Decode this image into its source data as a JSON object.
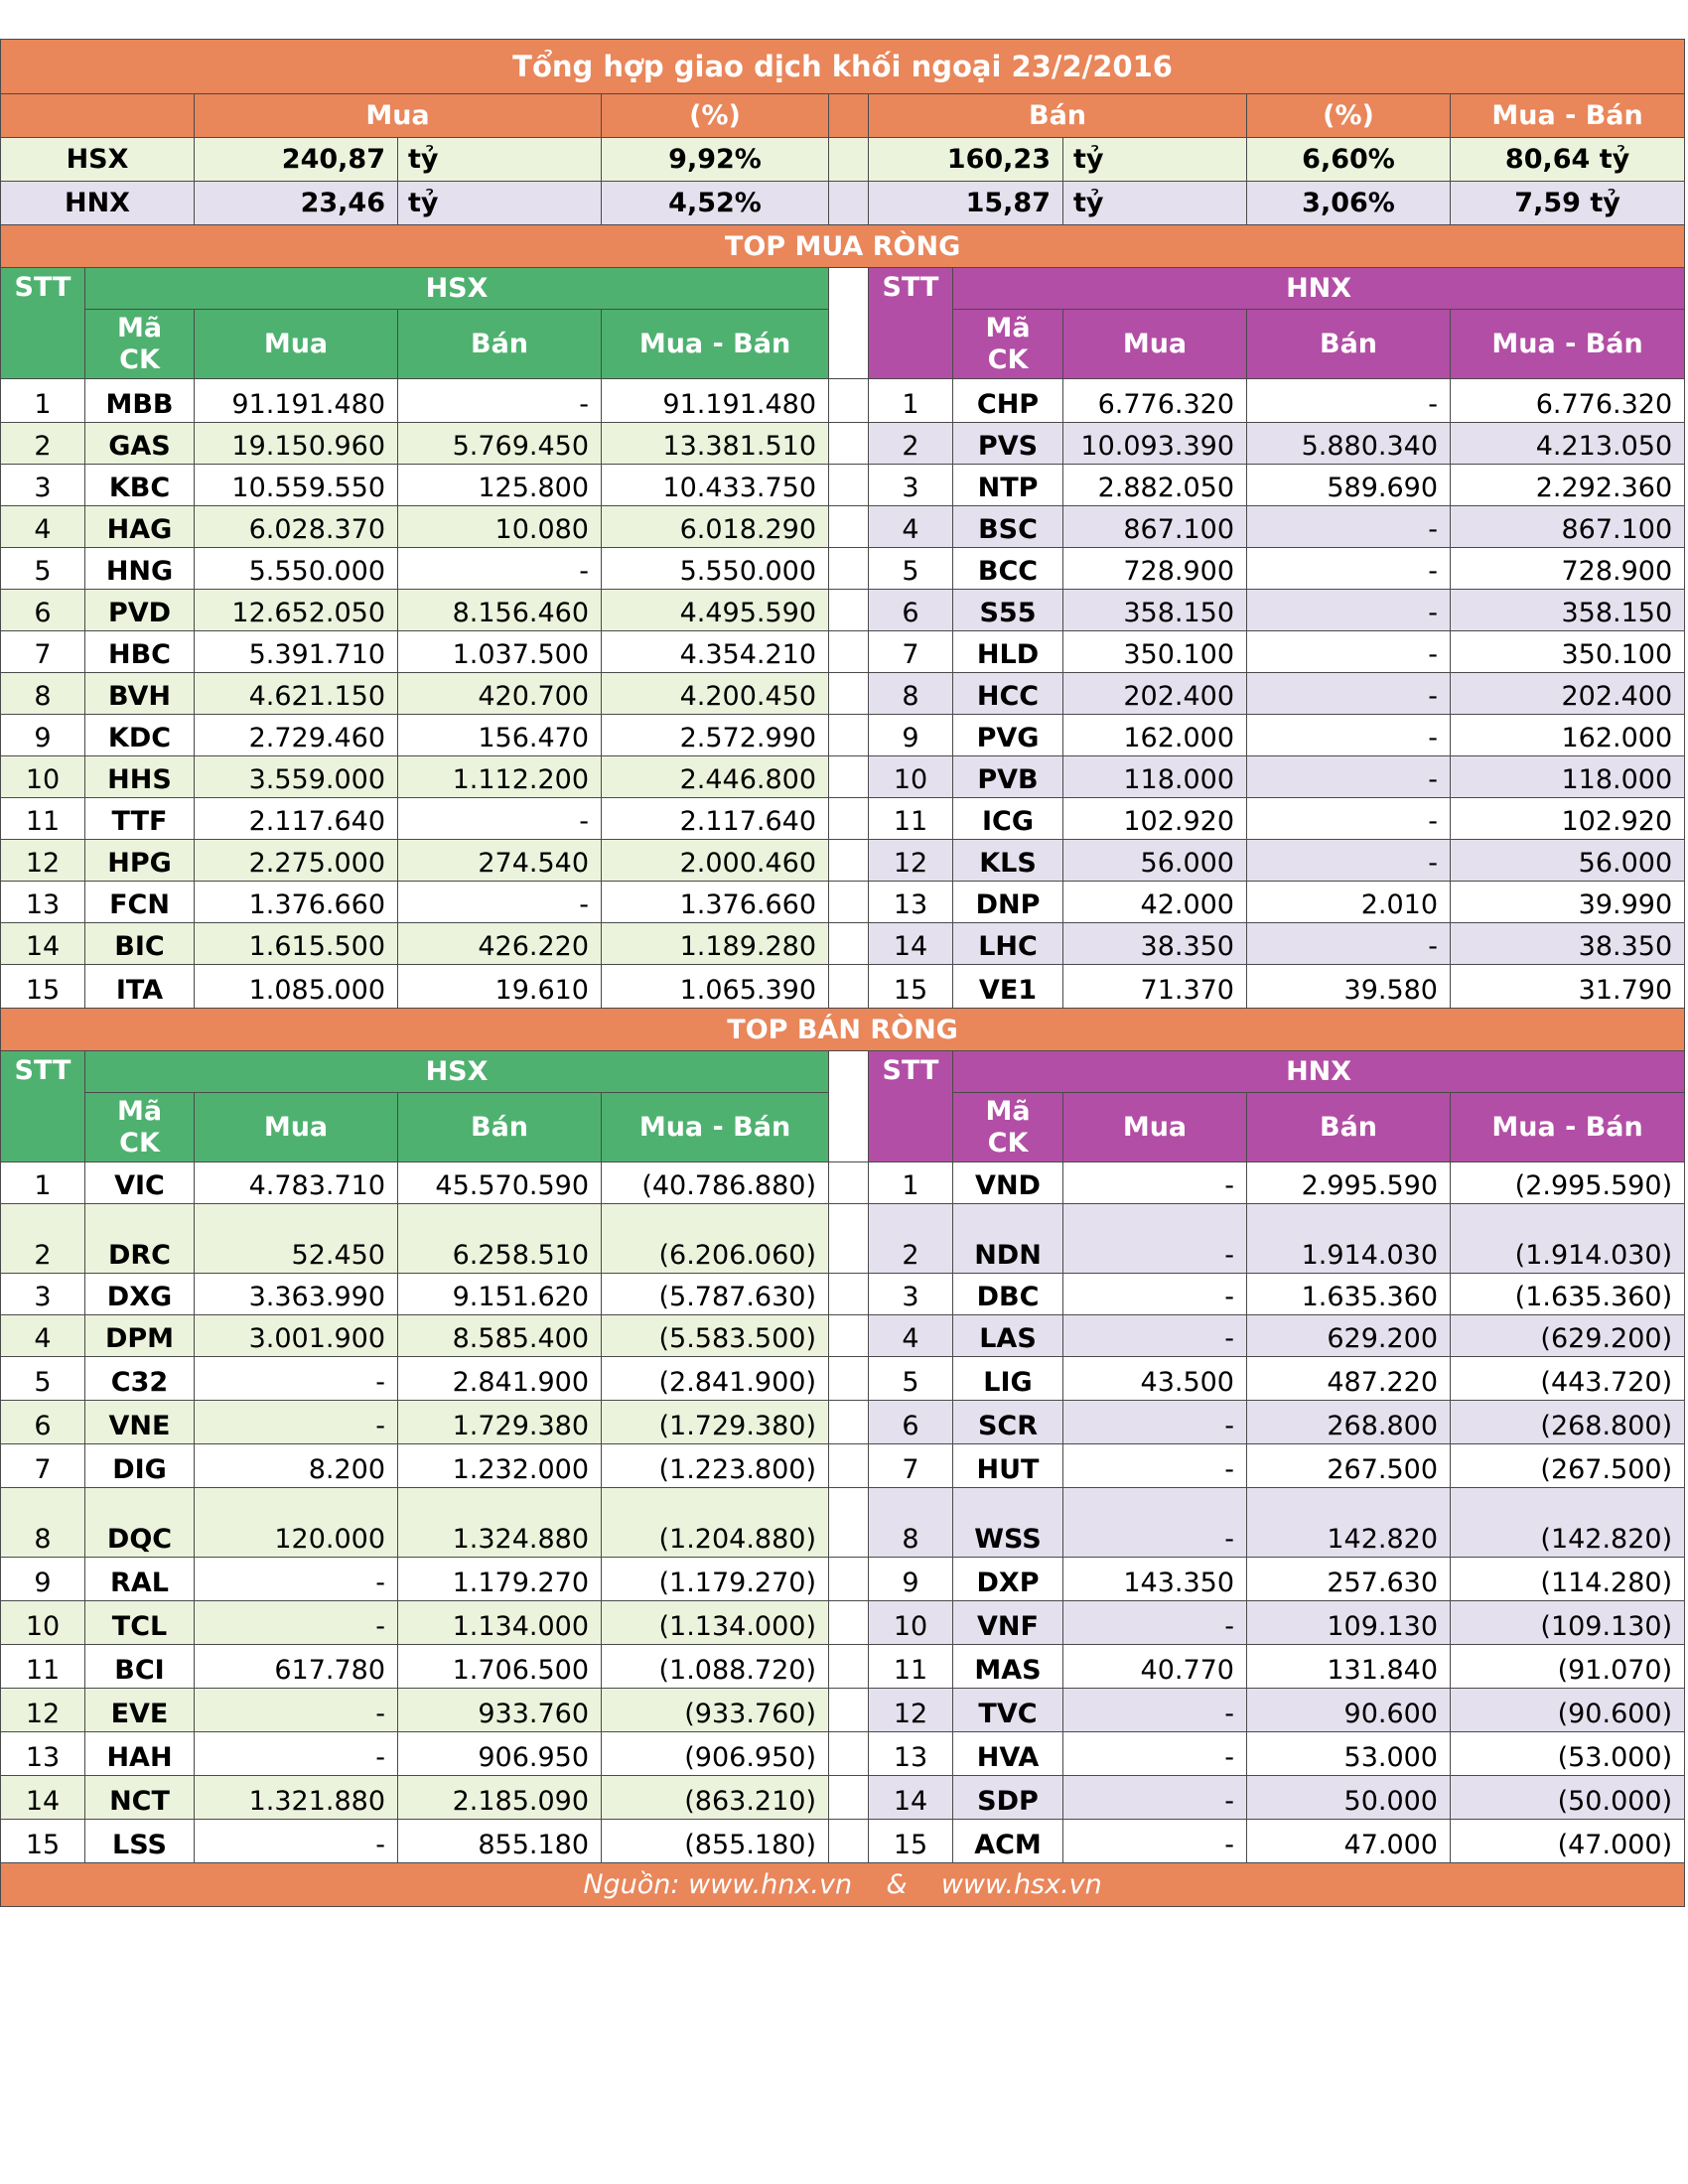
{
  "title": "Tổng hợp giao dịch khối ngoại 23/2/2016",
  "summary": {
    "headers": {
      "mua": "Mua",
      "pct1": "(%)",
      "ban": "Bán",
      "pct2": "(%)",
      "net": "Mua - Bán"
    },
    "rows": [
      {
        "exchange": "HSX",
        "mua": "240,87",
        "mua_unit": "tỷ",
        "mua_pct": "9,92%",
        "ban": "160,23",
        "ban_unit": "tỷ",
        "ban_pct": "6,60%",
        "net": "80,64 tỷ"
      },
      {
        "exchange": "HNX",
        "mua": "23,46",
        "mua_unit": "tỷ",
        "mua_pct": "4,52%",
        "ban": "15,87",
        "ban_unit": "tỷ",
        "ban_pct": "3,06%",
        "net": "7,59 tỷ"
      }
    ]
  },
  "headers": {
    "stt": "STT",
    "ma": "Mã",
    "ck": "CK",
    "mua": "Mua",
    "ban": "Bán",
    "net": "Mua - Bán",
    "hsx": "HSX",
    "hnx": "HNX"
  },
  "top_buy": {
    "title": "TOP MUA RÒNG",
    "hsx": [
      [
        "1",
        "MBB",
        "91.191.480",
        "-",
        "91.191.480"
      ],
      [
        "2",
        "GAS",
        "19.150.960",
        "5.769.450",
        "13.381.510"
      ],
      [
        "3",
        "KBC",
        "10.559.550",
        "125.800",
        "10.433.750"
      ],
      [
        "4",
        "HAG",
        "6.028.370",
        "10.080",
        "6.018.290"
      ],
      [
        "5",
        "HNG",
        "5.550.000",
        "-",
        "5.550.000"
      ],
      [
        "6",
        "PVD",
        "12.652.050",
        "8.156.460",
        "4.495.590"
      ],
      [
        "7",
        "HBC",
        "5.391.710",
        "1.037.500",
        "4.354.210"
      ],
      [
        "8",
        "BVH",
        "4.621.150",
        "420.700",
        "4.200.450"
      ],
      [
        "9",
        "KDC",
        "2.729.460",
        "156.470",
        "2.572.990"
      ],
      [
        "10",
        "HHS",
        "3.559.000",
        "1.112.200",
        "2.446.800"
      ],
      [
        "11",
        "TTF",
        "2.117.640",
        "-",
        "2.117.640"
      ],
      [
        "12",
        "HPG",
        "2.275.000",
        "274.540",
        "2.000.460"
      ],
      [
        "13",
        "FCN",
        "1.376.660",
        "-",
        "1.376.660"
      ],
      [
        "14",
        "BIC",
        "1.615.500",
        "426.220",
        "1.189.280"
      ],
      [
        "15",
        "ITA",
        "1.085.000",
        "19.610",
        "1.065.390"
      ]
    ],
    "hnx": [
      [
        "1",
        "CHP",
        "6.776.320",
        "-",
        "6.776.320"
      ],
      [
        "2",
        "PVS",
        "10.093.390",
        "5.880.340",
        "4.213.050"
      ],
      [
        "3",
        "NTP",
        "2.882.050",
        "589.690",
        "2.292.360"
      ],
      [
        "4",
        "BSC",
        "867.100",
        "-",
        "867.100"
      ],
      [
        "5",
        "BCC",
        "728.900",
        "-",
        "728.900"
      ],
      [
        "6",
        "S55",
        "358.150",
        "-",
        "358.150"
      ],
      [
        "7",
        "HLD",
        "350.100",
        "-",
        "350.100"
      ],
      [
        "8",
        "HCC",
        "202.400",
        "-",
        "202.400"
      ],
      [
        "9",
        "PVG",
        "162.000",
        "-",
        "162.000"
      ],
      [
        "10",
        "PVB",
        "118.000",
        "-",
        "118.000"
      ],
      [
        "11",
        "ICG",
        "102.920",
        "-",
        "102.920"
      ],
      [
        "12",
        "KLS",
        "56.000",
        "-",
        "56.000"
      ],
      [
        "13",
        "DNP",
        "42.000",
        "2.010",
        "39.990"
      ],
      [
        "14",
        "LHC",
        "38.350",
        "-",
        "38.350"
      ],
      [
        "15",
        "VE1",
        "71.370",
        "39.580",
        "31.790"
      ]
    ]
  },
  "top_sell": {
    "title": "TOP BÁN RÒNG",
    "hsx": [
      [
        "1",
        "VIC",
        "4.783.710",
        "45.570.590",
        "(40.786.880)"
      ],
      [
        "2",
        "DRC",
        "52.450",
        "6.258.510",
        "(6.206.060)"
      ],
      [
        "3",
        "DXG",
        "3.363.990",
        "9.151.620",
        "(5.787.630)"
      ],
      [
        "4",
        "DPM",
        "3.001.900",
        "8.585.400",
        "(5.583.500)"
      ],
      [
        "5",
        "C32",
        "-",
        "2.841.900",
        "(2.841.900)"
      ],
      [
        "6",
        "VNE",
        "-",
        "1.729.380",
        "(1.729.380)"
      ],
      [
        "7",
        "DIG",
        "8.200",
        "1.232.000",
        "(1.223.800)"
      ],
      [
        "8",
        "DQC",
        "120.000",
        "1.324.880",
        "(1.204.880)"
      ],
      [
        "9",
        "RAL",
        "-",
        "1.179.270",
        "(1.179.270)"
      ],
      [
        "10",
        "TCL",
        "-",
        "1.134.000",
        "(1.134.000)"
      ],
      [
        "11",
        "BCI",
        "617.780",
        "1.706.500",
        "(1.088.720)"
      ],
      [
        "12",
        "EVE",
        "-",
        "933.760",
        "(933.760)"
      ],
      [
        "13",
        "HAH",
        "-",
        "906.950",
        "(906.950)"
      ],
      [
        "14",
        "NCT",
        "1.321.880",
        "2.185.090",
        "(863.210)"
      ],
      [
        "15",
        "LSS",
        "-",
        "855.180",
        "(855.180)"
      ]
    ],
    "hnx": [
      [
        "1",
        "VND",
        "-",
        "2.995.590",
        "(2.995.590)"
      ],
      [
        "2",
        "NDN",
        "-",
        "1.914.030",
        "(1.914.030)"
      ],
      [
        "3",
        "DBC",
        "-",
        "1.635.360",
        "(1.635.360)"
      ],
      [
        "4",
        "LAS",
        "-",
        "629.200",
        "(629.200)"
      ],
      [
        "5",
        "LIG",
        "43.500",
        "487.220",
        "(443.720)"
      ],
      [
        "6",
        "SCR",
        "-",
        "268.800",
        "(268.800)"
      ],
      [
        "7",
        "HUT",
        "-",
        "267.500",
        "(267.500)"
      ],
      [
        "8",
        "WSS",
        "-",
        "142.820",
        "(142.820)"
      ],
      [
        "9",
        "DXP",
        "143.350",
        "257.630",
        "(114.280)"
      ],
      [
        "10",
        "VNF",
        "-",
        "109.130",
        "(109.130)"
      ],
      [
        "11",
        "MAS",
        "40.770",
        "131.840",
        "(91.070)"
      ],
      [
        "12",
        "TVC",
        "-",
        "90.600",
        "(90.600)"
      ],
      [
        "13",
        "HVA",
        "-",
        "53.000",
        "(53.000)"
      ],
      [
        "14",
        "SDP",
        "-",
        "50.000",
        "(50.000)"
      ],
      [
        "15",
        "ACM",
        "-",
        "47.000",
        "(47.000)"
      ]
    ]
  },
  "footer": {
    "left": "Nguồn: www.hnx.vn",
    "amp": "&",
    "right": "www.hsx.vn"
  }
}
